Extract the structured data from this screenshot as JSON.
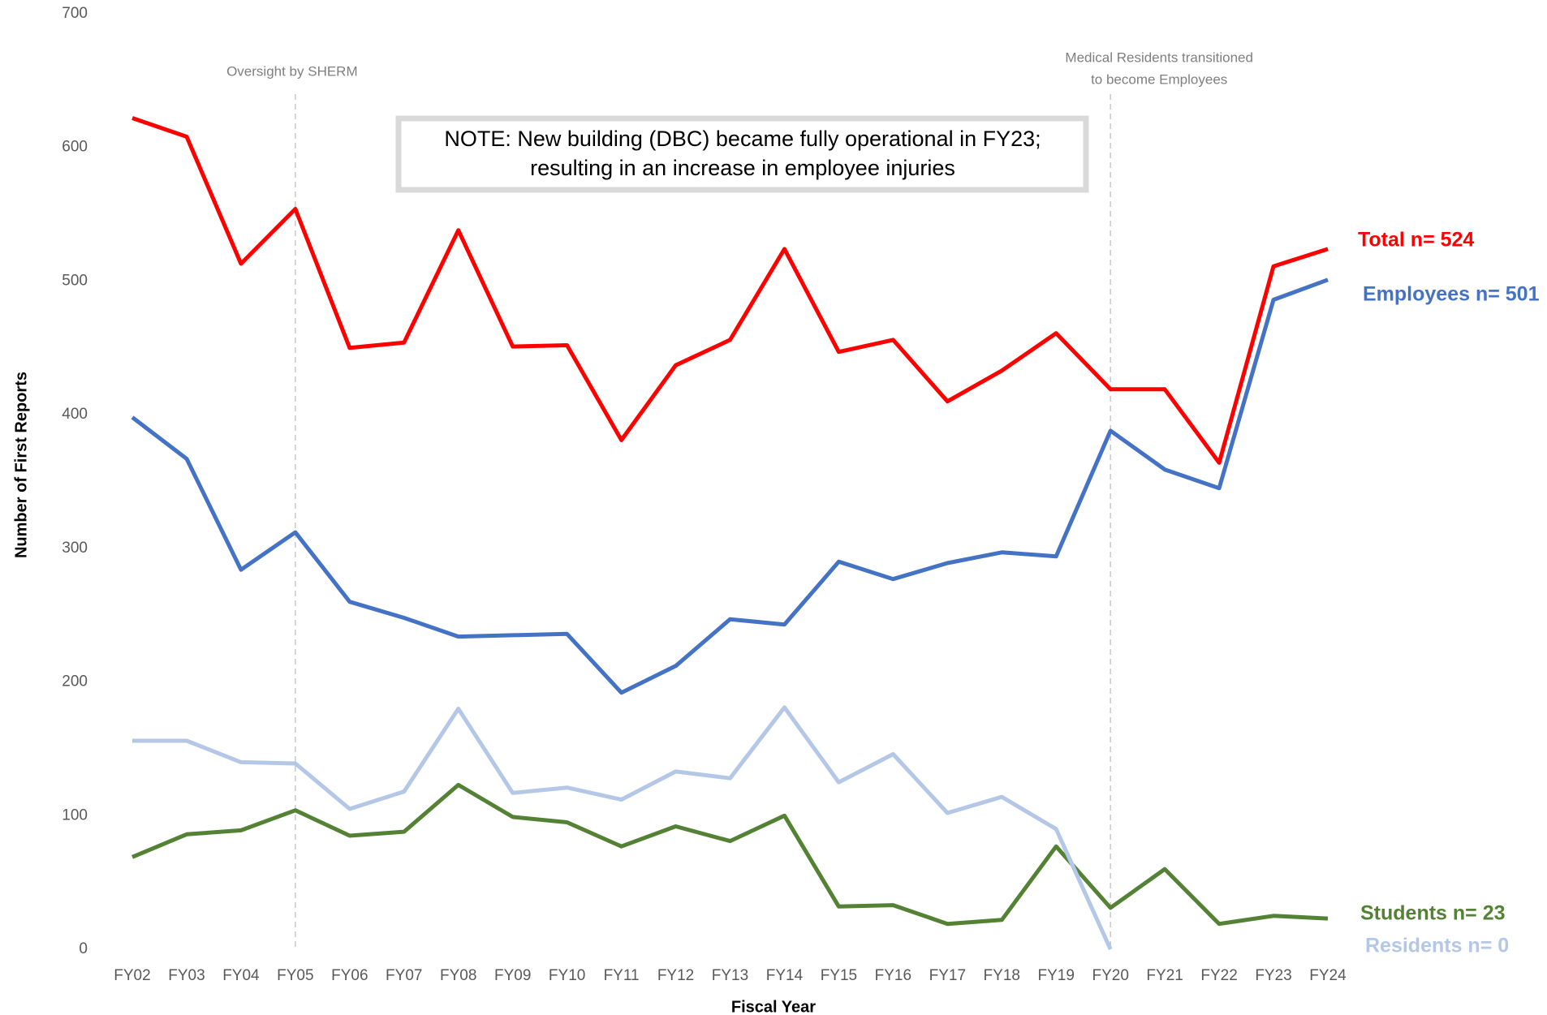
{
  "chart_data": {
    "type": "line",
    "x_label": "Fiscal Year",
    "y_label": "Number of First Reports",
    "categories": [
      "FY02",
      "FY03",
      "FY04",
      "FY05",
      "FY06",
      "FY07",
      "FY08",
      "FY09",
      "FY10",
      "FY11",
      "FY12",
      "FY13",
      "FY14",
      "FY15",
      "FY16",
      "FY17",
      "FY18",
      "FY19",
      "FY20",
      "FY21",
      "FY22",
      "FY23",
      "FY24"
    ],
    "series": [
      {
        "name": "Total",
        "end_label": "Total n= 524",
        "color": "#ff0000",
        "values": [
          622,
          608,
          513,
          554,
          450,
          454,
          538,
          451,
          452,
          381,
          437,
          456,
          524,
          447,
          456,
          410,
          433,
          461,
          419,
          419,
          364,
          511,
          524
        ]
      },
      {
        "name": "Employees",
        "end_label": "Employees n= 501",
        "color": "#4472c4",
        "values": [
          398,
          367,
          284,
          312,
          260,
          248,
          234,
          235,
          236,
          192,
          212,
          247,
          243,
          290,
          277,
          289,
          297,
          294,
          388,
          359,
          345,
          486,
          501
        ]
      },
      {
        "name": "Students",
        "end_label": "Students n= 23",
        "color": "#548235",
        "values": [
          69,
          86,
          89,
          104,
          85,
          88,
          123,
          99,
          95,
          77,
          92,
          81,
          100,
          32,
          33,
          19,
          22,
          77,
          31,
          60,
          19,
          25,
          23
        ]
      },
      {
        "name": "Residents",
        "end_label": "Residents n= 0",
        "color": "#b4c7e7",
        "values": [
          156,
          156,
          140,
          139,
          105,
          118,
          180,
          117,
          121,
          112,
          133,
          128,
          181,
          125,
          146,
          102,
          114,
          90,
          0,
          null,
          null,
          null,
          null
        ]
      }
    ],
    "ylim": [
      0,
      700
    ],
    "yticks": [
      0,
      100,
      200,
      300,
      400,
      500,
      600,
      700
    ],
    "grid": false,
    "annotations": [
      {
        "category": "FY05",
        "lines": [
          "Oversight by SHERM"
        ]
      },
      {
        "category": "FY20",
        "lines": [
          "Medical Residents transitioned",
          "to become Employees"
        ]
      }
    ],
    "note": [
      "NOTE: New building (DBC) became fully operational in FY23;",
      "resulting in an increase in employee injuries"
    ]
  }
}
